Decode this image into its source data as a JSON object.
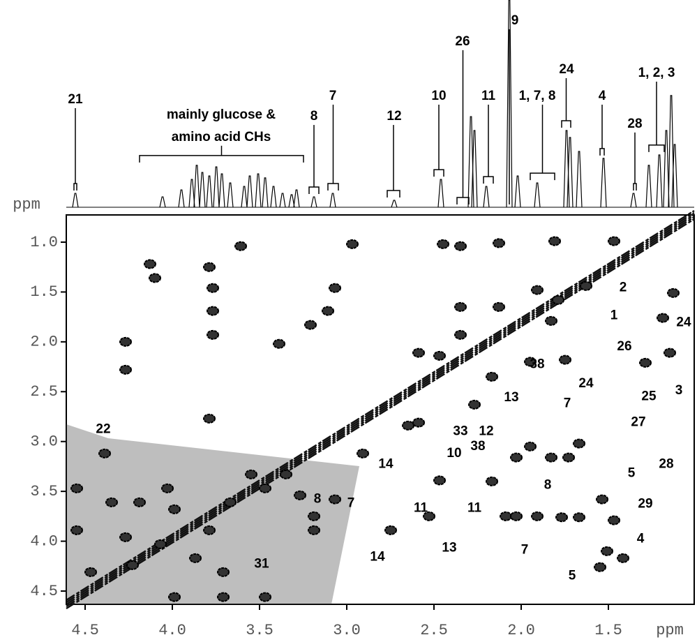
{
  "chart_data": {
    "type": "nmr-2d",
    "x_label": "ppm",
    "y_label": "ppm",
    "xlim": [
      4.608,
      1.008
    ],
    "ylim": [
      0.727,
      4.633
    ],
    "xticks": [
      4.5,
      {
        "value": 4,
        "label": "4.0"
      },
      3.5,
      {
        "value": 3,
        "label": "3.0"
      },
      2.5,
      {
        "value": 2,
        "label": "2.0"
      },
      1.5
    ],
    "yticks": [
      {
        "value": 1,
        "label": "1.0"
      },
      1.5,
      {
        "value": 2,
        "label": "2.0"
      },
      2.5,
      {
        "value": 3,
        "label": "3.0"
      },
      3.5,
      {
        "value": 4,
        "label": "4.0"
      },
      4.5
    ],
    "spectrum_1d": {
      "ylim": [
        0,
        107.2
      ],
      "x": [
        4.556,
        4.056,
        3.948,
        3.888,
        3.86,
        3.828,
        3.788,
        3.748,
        3.716,
        3.668,
        3.588,
        3.556,
        3.508,
        3.468,
        3.42,
        3.368,
        3.316,
        3.288,
        3.188,
        3.08,
        2.728,
        2.46,
        2.288,
        2.268,
        2.2,
        2.068,
        2.02,
        1.908,
        1.74,
        1.72,
        1.668,
        1.528,
        1.356,
        1.268,
        1.208,
        1.168,
        1.14,
        1.12
      ],
      "values": [
        7.2,
        5.4,
        9,
        14.4,
        21.7,
        18,
        16.2,
        20.9,
        17.3,
        12.6,
        10.8,
        16.2,
        17.3,
        15.2,
        10.8,
        7.2,
        6.5,
        9,
        5.4,
        7.2,
        3.6,
        14.4,
        46.9,
        39.7,
        10.8,
        107.2,
        16.2,
        12.6,
        39.7,
        36.1,
        28.9,
        25.3,
        7.2,
        21.7,
        27.1,
        39.7,
        57.8,
        32.5
      ],
      "annotations": [
        {
          "text": "21",
          "x": 4.556,
          "y": 55.6,
          "range": [
            4.564,
            4.548
          ]
        },
        {
          "text": [
            "mainly glucose &",
            "amino acid CHs"
          ],
          "x": 3.72,
          "y": 47.7,
          "range": [
            4.188,
            3.248
          ]
        },
        {
          "text": "8",
          "x": 3.188,
          "y": 46.9,
          "range": [
            3.216,
            3.16
          ]
        },
        {
          "text": "7",
          "x": 3.08,
          "y": 57.4,
          "range": [
            3.108,
            3.048
          ]
        },
        {
          "text": "12",
          "x": 2.728,
          "y": 46.9,
          "range": [
            2.768,
            2.696
          ]
        },
        {
          "text": "10",
          "x": 2.472,
          "y": 57.4,
          "range": [
            2.5,
            2.444
          ]
        },
        {
          "text": "26",
          "x": 2.336,
          "y": 85.6,
          "range": [
            2.368,
            2.3
          ]
        },
        {
          "text": "11",
          "x": 2.188,
          "y": 57.4,
          "range": [
            2.216,
            2.16
          ]
        },
        {
          "text": "9",
          "x": 2.036,
          "y": 96.4,
          "range": [
            2.068,
            2.068
          ]
        },
        {
          "text": "1, 7, 8",
          "x": 1.908,
          "y": 57.4,
          "range": [
            1.948,
            1.808
          ]
        },
        {
          "text": "24",
          "x": 1.74,
          "y": 71.1,
          "range": [
            1.768,
            1.716
          ]
        },
        {
          "text": "4",
          "x": 1.536,
          "y": 57.4,
          "range": [
            1.548,
            1.524
          ]
        },
        {
          "text": "1, 2, 3",
          "x": 1.224,
          "y": 69.3,
          "range": [
            1.268,
            1.18
          ]
        },
        {
          "text": "28",
          "x": 1.348,
          "y": 43,
          "range": [
            1.356,
            1.34
          ]
        }
      ]
    },
    "cross_peaks": {
      "x": [
        2.448,
        2.348,
        2.128,
        1.808,
        1.468,
        2.968,
        3.608,
        4.128,
        4.1,
        3.788,
        3.768,
        3.768,
        3.768,
        3.068,
        3.108,
        3.208,
        2.348,
        2.128,
        1.908,
        1.788,
        1.828,
        2.348,
        2.588,
        2.468,
        1.748,
        1.948,
        4.268,
        4.268,
        3.388,
        1.628,
        1.188,
        1.148,
        1.128,
        1.288,
        2.168,
        2.268,
        2.648,
        2.588,
        1.948,
        1.828,
        1.668,
        1.728,
        2.028,
        2.468,
        2.168,
        2.748,
        2.528,
        2.088,
        2.028,
        1.908,
        1.768,
        1.668,
        1.536,
        1.468,
        1.508,
        1.416,
        1.548,
        3.188,
        3.068,
        3.188,
        4.548,
        4.548,
        3.268,
        3.548,
        3.788,
        2.908,
        4.388,
        4.348,
        4.188,
        3.988,
        3.788,
        3.668,
        3.468,
        3.348,
        4.068,
        3.868,
        3.708,
        4.268,
        4.468,
        4.028,
        4.228,
        3.988,
        3.708,
        3.468
      ],
      "y": [
        1.02,
        1.04,
        1.01,
        0.99,
        0.99,
        1.02,
        1.04,
        1.22,
        1.36,
        1.25,
        1.46,
        1.69,
        1.93,
        1.46,
        1.69,
        1.83,
        1.65,
        1.65,
        1.48,
        1.58,
        1.79,
        1.93,
        2.11,
        2.14,
        2.18,
        2.2,
        2.0,
        2.28,
        2.02,
        1.44,
        1.76,
        2.11,
        1.51,
        2.21,
        2.35,
        2.63,
        2.84,
        2.81,
        3.05,
        3.16,
        3.02,
        3.16,
        3.16,
        3.39,
        3.4,
        3.89,
        3.75,
        3.75,
        3.75,
        3.75,
        3.76,
        3.76,
        3.58,
        3.79,
        4.1,
        4.17,
        4.26,
        3.75,
        3.58,
        3.89,
        3.47,
        3.89,
        3.54,
        3.33,
        2.77,
        3.12,
        3.12,
        3.61,
        3.61,
        3.68,
        3.89,
        3.61,
        3.47,
        3.33,
        4.03,
        4.17,
        4.31,
        3.96,
        4.31,
        3.47,
        4.24,
        4.56,
        4.56,
        4.56
      ]
    },
    "annotations": [
      {
        "text": "2",
        "x": 1.416,
        "y": 1.46
      },
      {
        "text": "1",
        "x": 1.468,
        "y": 1.74
      },
      {
        "text": "24",
        "x": 1.068,
        "y": 1.81
      },
      {
        "text": "26",
        "x": 1.408,
        "y": 2.05
      },
      {
        "text": "38",
        "x": 1.908,
        "y": 2.23
      },
      {
        "text": "24",
        "x": 1.628,
        "y": 2.42
      },
      {
        "text": "3",
        "x": 1.096,
        "y": 2.49
      },
      {
        "text": "13",
        "x": 2.056,
        "y": 2.56
      },
      {
        "text": "25",
        "x": 1.268,
        "y": 2.55
      },
      {
        "text": "7",
        "x": 1.736,
        "y": 2.62
      },
      {
        "text": "12",
        "x": 2.2,
        "y": 2.9
      },
      {
        "text": "27",
        "x": 1.328,
        "y": 2.81
      },
      {
        "text": "33",
        "x": 2.348,
        "y": 2.9
      },
      {
        "text": "22",
        "x": 4.396,
        "y": 2.88
      },
      {
        "text": "38",
        "x": 2.248,
        "y": 3.05
      },
      {
        "text": "14",
        "x": 2.776,
        "y": 3.23
      },
      {
        "text": "10",
        "x": 2.384,
        "y": 3.12
      },
      {
        "text": "28",
        "x": 1.168,
        "y": 3.23
      },
      {
        "text": "8",
        "x": 1.848,
        "y": 3.44
      },
      {
        "text": "5",
        "x": 1.368,
        "y": 3.32
      },
      {
        "text": "11",
        "x": 2.576,
        "y": 3.67
      },
      {
        "text": "11",
        "x": 2.268,
        "y": 3.67
      },
      {
        "text": "29",
        "x": 1.288,
        "y": 3.63
      },
      {
        "text": "8",
        "x": 3.168,
        "y": 3.58
      },
      {
        "text": "7",
        "x": 2.976,
        "y": 3.62
      },
      {
        "text": "13",
        "x": 2.412,
        "y": 4.07
      },
      {
        "text": "7",
        "x": 1.98,
        "y": 4.09
      },
      {
        "text": "14",
        "x": 2.824,
        "y": 4.16
      },
      {
        "text": "4",
        "x": 1.316,
        "y": 3.98
      },
      {
        "text": "31",
        "x": 3.488,
        "y": 4.23
      },
      {
        "text": "5",
        "x": 1.708,
        "y": 4.35
      }
    ]
  }
}
